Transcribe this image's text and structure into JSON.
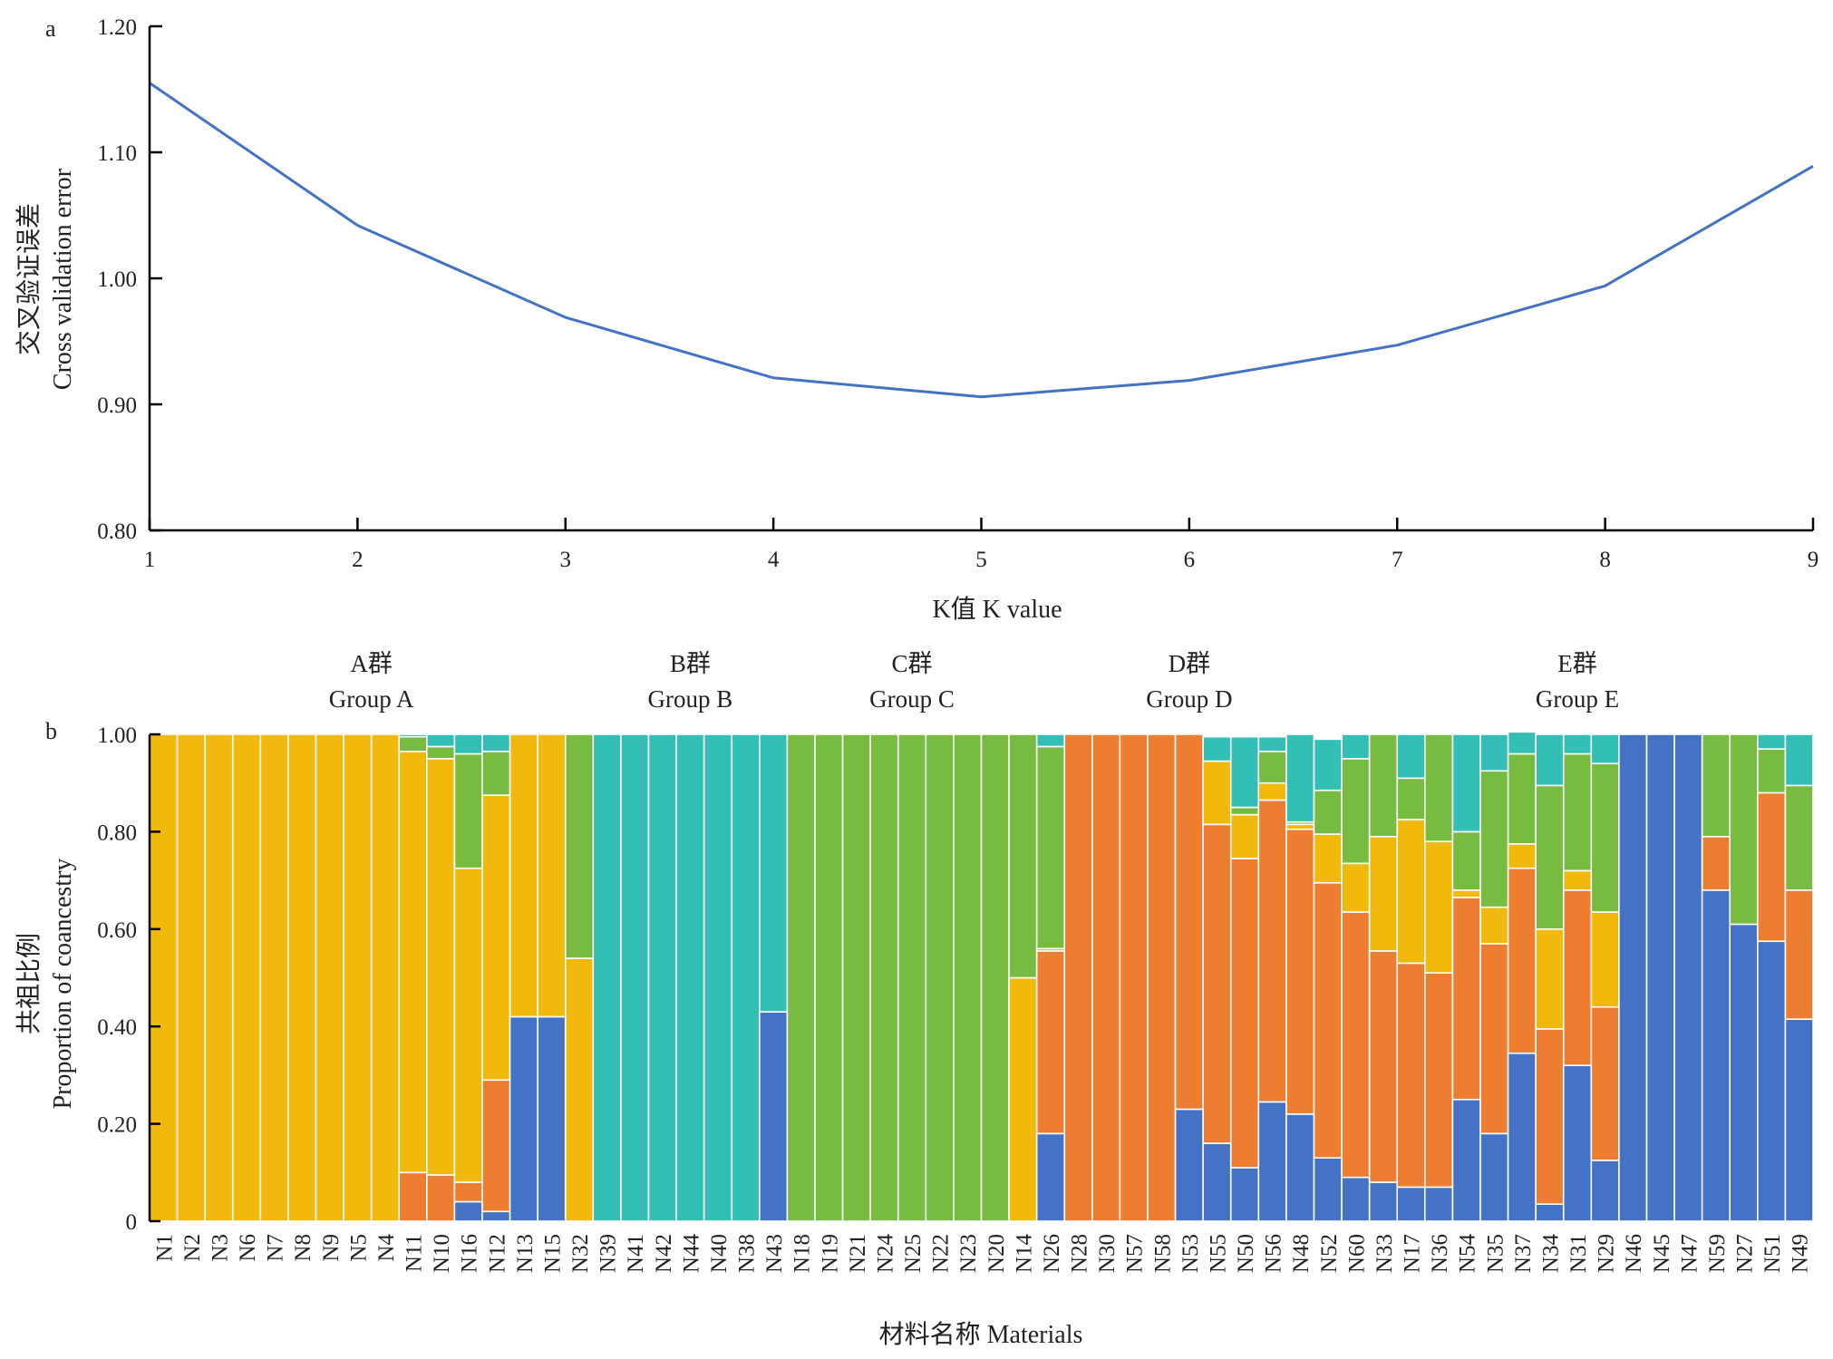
{
  "chart_data": [
    {
      "panel_label": "a",
      "type": "line",
      "xlabel": "K值 K value",
      "ylabel_cn": "交叉验证误差",
      "ylabel_en": "Cross validation error",
      "x": [
        1,
        2,
        3,
        4,
        5,
        6,
        7,
        8,
        9
      ],
      "x_tick_labels": [
        "1",
        "2",
        "3",
        "4",
        "5",
        "6",
        "7",
        "8",
        "9"
      ],
      "y_tick_labels": [
        "0.80",
        "0.90",
        "1.00",
        "1.10",
        "1.20"
      ],
      "ylim": [
        0.8,
        1.2
      ],
      "xlim": [
        1,
        9
      ],
      "series": [
        {
          "values": [
            1.155,
            1.042,
            0.969,
            0.921,
            0.906,
            0.919,
            0.947,
            0.994,
            1.089
          ],
          "color": "#4472C4"
        }
      ],
      "grid": false
    },
    {
      "panel_label": "b",
      "type": "bar",
      "stacked": true,
      "xlabel": "材料名称  Materials",
      "ylabel_cn": "共祖比例",
      "ylabel_en": "Proportion of coancestry",
      "y_tick_labels": [
        "0",
        "0.20",
        "0.40",
        "0.60",
        "0.80",
        "1.00"
      ],
      "ylim": [
        0,
        1
      ],
      "grid": false,
      "component_colors": [
        "#4472C4",
        "#ED7D31",
        "#F1B90B",
        "#77BB41",
        "#33BFB5"
      ],
      "groups": [
        {
          "label_cn": "A群",
          "label_en": "Group A",
          "first": "N1",
          "last": "N32"
        },
        {
          "label_cn": "B群",
          "label_en": "Group B",
          "first": "N39",
          "last": "N43"
        },
        {
          "label_cn": "C群",
          "label_en": "Group C",
          "first": "N18",
          "last": "N14"
        },
        {
          "label_cn": "D群",
          "label_en": "Group D",
          "first": "N26",
          "last": "N52"
        },
        {
          "label_cn": "E群",
          "label_en": "Group E",
          "first": "N60",
          "last": "N49"
        }
      ],
      "categories": [
        "N1",
        "N2",
        "N3",
        "N6",
        "N7",
        "N8",
        "N9",
        "N5",
        "N4",
        "N11",
        "N10",
        "N16",
        "N12",
        "N13",
        "N15",
        "N32",
        "N39",
        "N41",
        "N42",
        "N44",
        "N40",
        "N38",
        "N43",
        "N18",
        "N19",
        "N21",
        "N24",
        "N25",
        "N22",
        "N23",
        "N20",
        "N14",
        "N26",
        "N28",
        "N30",
        "N57",
        "N58",
        "N53",
        "N55",
        "N50",
        "N56",
        "N48",
        "N52",
        "N60",
        "N33",
        "N17",
        "N36",
        "N54",
        "N35",
        "N37",
        "N34",
        "N31",
        "N29",
        "N46",
        "N45",
        "N47",
        "N59",
        "N27",
        "N51",
        "N49"
      ],
      "series": [
        {
          "color": "#4472C4",
          "values": [
            0,
            0,
            0,
            0,
            0,
            0,
            0,
            0,
            0,
            0,
            0,
            0.04,
            0.02,
            0.42,
            0.42,
            0,
            0,
            0,
            0,
            0,
            0,
            0,
            0.43,
            0,
            0,
            0,
            0,
            0,
            0,
            0,
            0,
            0,
            0.18,
            0,
            0,
            0,
            0,
            0.23,
            0.16,
            0.11,
            0.245,
            0.22,
            0.13,
            0.09,
            0.08,
            0.07,
            0.07,
            0.25,
            0.18,
            0.345,
            0.035,
            0.32,
            0.125,
            1,
            1,
            1,
            0.68,
            0.61,
            0.575,
            0.415
          ]
        },
        {
          "color": "#ED7D31",
          "values": [
            0,
            0,
            0,
            0,
            0,
            0,
            0,
            0,
            0,
            0.1,
            0.095,
            0.04,
            0.27,
            0,
            0,
            0,
            0,
            0,
            0,
            0,
            0,
            0,
            0,
            0,
            0,
            0,
            0,
            0,
            0,
            0,
            0,
            0,
            0.375,
            1,
            1,
            1,
            1,
            0.77,
            0.655,
            0.635,
            0.62,
            0.585,
            0.565,
            0.545,
            0.475,
            0.46,
            0.44,
            0.415,
            0.39,
            0.38,
            0.36,
            0.36,
            0.315,
            0,
            0,
            0,
            0.11,
            0,
            0.305,
            0.265
          ]
        },
        {
          "color": "#F1B90B",
          "values": [
            1,
            1,
            1,
            1,
            1,
            1,
            1,
            1,
            1,
            0.865,
            0.855,
            0.645,
            0.585,
            0.58,
            0.58,
            0.54,
            0,
            0,
            0,
            0,
            0,
            0,
            0,
            0,
            0,
            0,
            0,
            0,
            0,
            0,
            0,
            0.5,
            0.005,
            0,
            0,
            0,
            0,
            0,
            0.13,
            0.09,
            0.035,
            0.01,
            0.1,
            0.1,
            0.235,
            0.295,
            0.27,
            0.015,
            0.075,
            0.05,
            0.205,
            0.04,
            0.195,
            0,
            0,
            0,
            0,
            0,
            0,
            0
          ]
        },
        {
          "color": "#77BB41",
          "values": [
            0,
            0,
            0,
            0,
            0,
            0,
            0,
            0,
            0,
            0.03,
            0.025,
            0.235,
            0.09,
            0,
            0,
            0.46,
            0,
            0,
            0,
            0,
            0,
            0,
            0,
            1,
            1,
            1,
            1,
            1,
            1,
            1,
            1,
            0.5,
            0.415,
            0,
            0,
            0,
            0,
            0,
            0,
            0.015,
            0.065,
            0.005,
            0.09,
            0.215,
            0.21,
            0.085,
            0.22,
            0.12,
            0.28,
            0.185,
            0.295,
            0.24,
            0.305,
            0,
            0,
            0,
            0.21,
            0.39,
            0.09,
            0.215
          ]
        },
        {
          "color": "#33BFB5",
          "values": [
            0,
            0,
            0,
            0,
            0,
            0,
            0,
            0,
            0,
            0.005,
            0.025,
            0.04,
            0.035,
            0,
            0,
            0,
            1,
            1,
            1,
            1,
            1,
            1,
            0.57,
            0,
            0,
            0,
            0,
            0,
            0,
            0,
            0,
            0,
            0.025,
            0,
            0,
            0,
            0,
            0,
            0.05,
            0.145,
            0.03,
            0.18,
            0.105,
            0.05,
            0,
            0.09,
            0,
            0.2,
            0.075,
            0.045,
            0.105,
            0.04,
            0.06,
            0,
            0,
            0,
            0,
            0,
            0.03,
            0.105
          ]
        }
      ]
    }
  ]
}
